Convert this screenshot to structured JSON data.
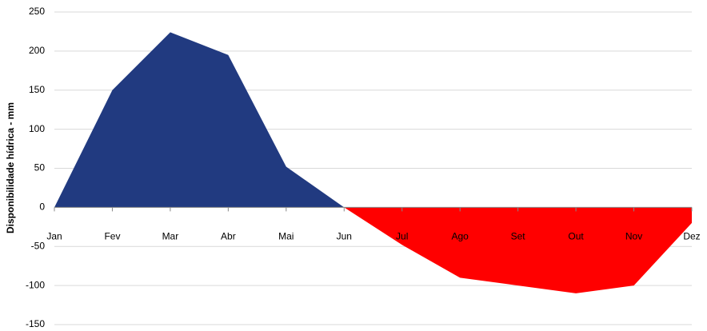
{
  "chart_data": {
    "type": "area",
    "y_label": "Disponibilidade hídrica - mm",
    "categories": [
      "Jan",
      "Fev",
      "Mar",
      "Abr",
      "Mai",
      "Jun",
      "Jul",
      "Ago",
      "Set",
      "Out",
      "Nov",
      "Dez"
    ],
    "series": [
      {
        "color": "#213a80",
        "values": [
          0,
          150,
          224,
          195,
          52,
          0,
          null,
          null,
          null,
          null,
          null,
          null
        ]
      },
      {
        "color": "#ff0000",
        "values": [
          null,
          null,
          null,
          null,
          null,
          0,
          -48,
          -90,
          -100,
          -110,
          -100,
          -20
        ]
      }
    ],
    "ylim": [
      -150,
      250
    ],
    "yticks": [
      -150,
      -100,
      -50,
      0,
      50,
      100,
      150,
      200,
      250
    ],
    "grid": true
  }
}
